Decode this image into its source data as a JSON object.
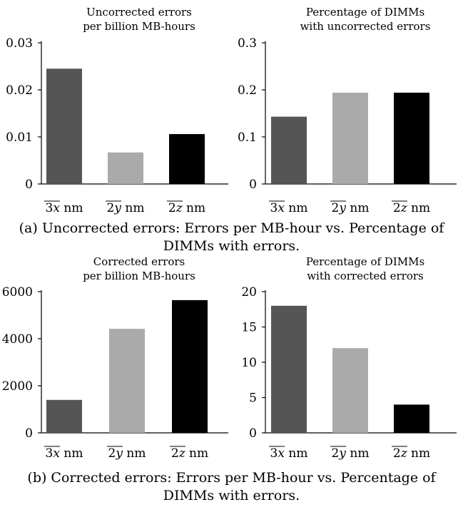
{
  "captions": {
    "a": "(a) Uncorrected errors: Errors per MB-hour vs. Percentage of DIMMs with errors.",
    "b": "(b) Corrected errors: Errors per MB-hour vs. Percentage of DIMMs with errors."
  },
  "chart_data": [
    {
      "type": "bar",
      "title": "Uncorrected errors per billion MB-hours",
      "categories": [
        "3x nm",
        "2y nm",
        "2z nm"
      ],
      "values": [
        0.0245,
        0.0067,
        0.0106
      ],
      "colors": [
        "#555555",
        "#aaaaaa",
        "#000000"
      ],
      "ylim": [
        0,
        0.03
      ],
      "yticks": [
        "0",
        "0.01",
        "0.02",
        "0.03"
      ],
      "ytick_values": [
        0,
        0.01,
        0.02,
        0.03
      ]
    },
    {
      "type": "bar",
      "title": "Percentage of DIMMs with uncorrected errors",
      "categories": [
        "3x nm",
        "2y nm",
        "2z nm"
      ],
      "values": [
        0.143,
        0.194,
        0.194
      ],
      "colors": [
        "#555555",
        "#aaaaaa",
        "#000000"
      ],
      "ylim": [
        0,
        0.3
      ],
      "yticks": [
        "0",
        "0.1",
        "0.2",
        "0.3"
      ],
      "ytick_values": [
        0,
        0.1,
        0.2,
        0.3
      ]
    },
    {
      "type": "bar",
      "title": "Corrected errors per billion MB-hours",
      "categories": [
        "3x nm",
        "2y nm",
        "2z nm"
      ],
      "values": [
        1400,
        4420,
        5640
      ],
      "colors": [
        "#555555",
        "#aaaaaa",
        "#000000"
      ],
      "ylim": [
        0,
        6000
      ],
      "yticks": [
        "0",
        "2000",
        "4000",
        "6000"
      ],
      "ytick_values": [
        0,
        2000,
        4000,
        6000
      ]
    },
    {
      "type": "bar",
      "title": "Percentage of DIMMs with corrected errors",
      "categories": [
        "3x nm",
        "2y nm",
        "2z nm"
      ],
      "values": [
        18,
        12,
        4
      ],
      "colors": [
        "#555555",
        "#aaaaaa",
        "#000000"
      ],
      "ylim": [
        0,
        20
      ],
      "yticks": [
        "0",
        "5",
        "10",
        "15",
        "20"
      ],
      "ytick_values": [
        0,
        5,
        10,
        15,
        20
      ]
    }
  ]
}
